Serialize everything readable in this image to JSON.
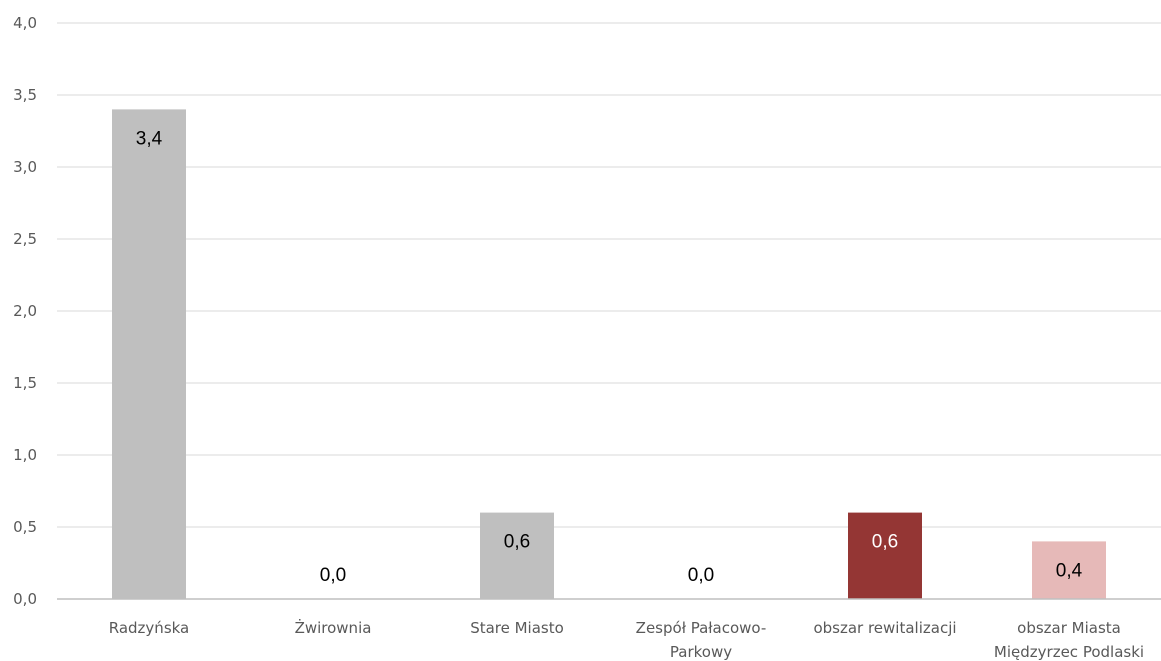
{
  "chart_data": {
    "type": "bar",
    "title": "",
    "xlabel": "",
    "ylabel": "",
    "ylim": [
      0,
      4
    ],
    "yticks": [
      "0,0",
      "0,5",
      "1,0",
      "1,5",
      "2,0",
      "2,5",
      "3,0",
      "3,5",
      "4,0"
    ],
    "grid": true,
    "categories": [
      [
        "Radzyńska"
      ],
      [
        "Żwirownia"
      ],
      [
        "Stare Miasto"
      ],
      [
        "Zespół Pałacowo-",
        "Parkowy"
      ],
      [
        "obszar rewitalizacji"
      ],
      [
        "obszar Miasta",
        "Międzyrzec Podlaski"
      ]
    ],
    "values": [
      3.4,
      0.0,
      0.6,
      0.0,
      0.6,
      0.4
    ],
    "data_labels": [
      "3,4",
      "0,0",
      "0,6",
      "0,0",
      "0,6",
      "0,4"
    ],
    "bar_colors": [
      "#bfbfbf",
      "#bfbfbf",
      "#bfbfbf",
      "#bfbfbf",
      "#943634",
      "#e6b9b8"
    ],
    "label_colors": [
      "#000000",
      "#000000",
      "#000000",
      "#000000",
      "#ffffff",
      "#000000"
    ],
    "grid_color": "#d9d9d9",
    "axis_color": "#bfbfbf"
  }
}
